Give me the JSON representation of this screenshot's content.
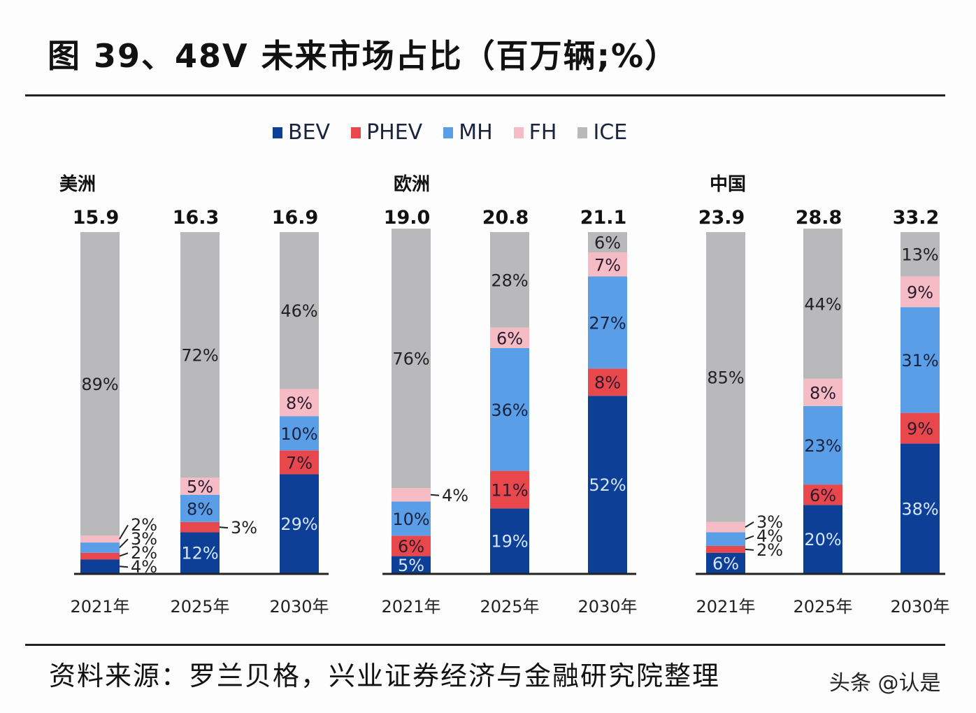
{
  "title": "图 39、48V 未来市场占比（百万辆;%）",
  "source": "资料来源：罗兰贝格，兴业证券经济与金融研究院整理",
  "watermark": "头条 @认是",
  "chart_data": {
    "type": "bar",
    "stacked": true,
    "normalized": true,
    "legend": {
      "position": "top",
      "entries": [
        "BEV",
        "PHEV",
        "MH",
        "FH",
        "ICE"
      ]
    },
    "colors": {
      "BEV": "#0d3f96",
      "PHEV": "#e8474c",
      "MH": "#5b9ee8",
      "FH": "#f6bcc5",
      "ICE": "#b9b9bb"
    },
    "groups": [
      {
        "name": "美洲",
        "categories": [
          "2021年",
          "2025年",
          "2030年"
        ],
        "totals": [
          "15.9",
          "16.3",
          "16.9"
        ],
        "series": [
          {
            "name": "BEV",
            "values": [
              4,
              12,
              29
            ]
          },
          {
            "name": "PHEV",
            "values": [
              2,
              3,
              7
            ]
          },
          {
            "name": "MH",
            "values": [
              3,
              8,
              10
            ]
          },
          {
            "name": "FH",
            "values": [
              2,
              5,
              8
            ]
          },
          {
            "name": "ICE",
            "values": [
              89,
              72,
              46
            ]
          }
        ]
      },
      {
        "name": "欧洲",
        "categories": [
          "2021年",
          "2025年",
          "2030年"
        ],
        "totals": [
          "19.0",
          "20.8",
          "21.1"
        ],
        "series": [
          {
            "name": "BEV",
            "values": [
              5,
              19,
              52
            ]
          },
          {
            "name": "PHEV",
            "values": [
              6,
              11,
              8
            ]
          },
          {
            "name": "MH",
            "values": [
              10,
              36,
              27
            ]
          },
          {
            "name": "FH",
            "values": [
              4,
              6,
              7
            ]
          },
          {
            "name": "ICE",
            "values": [
              76,
              28,
              6
            ]
          }
        ]
      },
      {
        "name": "中国",
        "categories": [
          "2021年",
          "2025年",
          "2030年"
        ],
        "totals": [
          "23.9",
          "28.8",
          "33.2"
        ],
        "series": [
          {
            "name": "BEV",
            "values": [
              6,
              20,
              38
            ]
          },
          {
            "name": "PHEV",
            "values": [
              2,
              6,
              9
            ]
          },
          {
            "name": "MH",
            "values": [
              4,
              23,
              31
            ]
          },
          {
            "name": "FH",
            "values": [
              3,
              8,
              9
            ]
          },
          {
            "name": "ICE",
            "values": [
              85,
              44,
              13
            ]
          }
        ]
      }
    ]
  }
}
